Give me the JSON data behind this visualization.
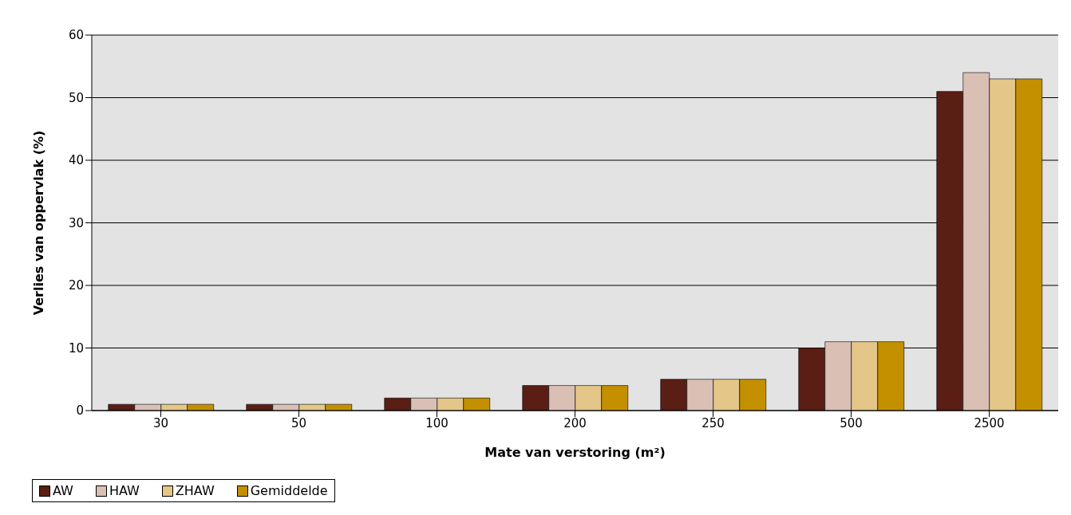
{
  "chart_data": {
    "type": "bar",
    "categories": [
      "30",
      "50",
      "100",
      "200",
      "250",
      "500",
      "2500"
    ],
    "series": [
      {
        "name": "AW",
        "color": "#5a1e14",
        "values": [
          1,
          1,
          2,
          4,
          5,
          10,
          51
        ]
      },
      {
        "name": "HAW",
        "color": "#d9bfb4",
        "values": [
          1,
          1,
          2,
          4,
          5,
          11,
          54
        ]
      },
      {
        "name": "ZHAW",
        "color": "#e3c688",
        "values": [
          1,
          1,
          2,
          4,
          5,
          11,
          53
        ]
      },
      {
        "name": "Gemiddelde",
        "color": "#c49000",
        "values": [
          1,
          1,
          2,
          4,
          5,
          11,
          53
        ]
      }
    ],
    "xlabel": "Mate van verstoring (m²)",
    "ylabel": "Verlies van oppervlak (%)",
    "ylim": [
      0,
      60
    ],
    "yticks": [
      0,
      10,
      20,
      30,
      40,
      50,
      60
    ],
    "grid": "y",
    "legend": "bottom"
  }
}
